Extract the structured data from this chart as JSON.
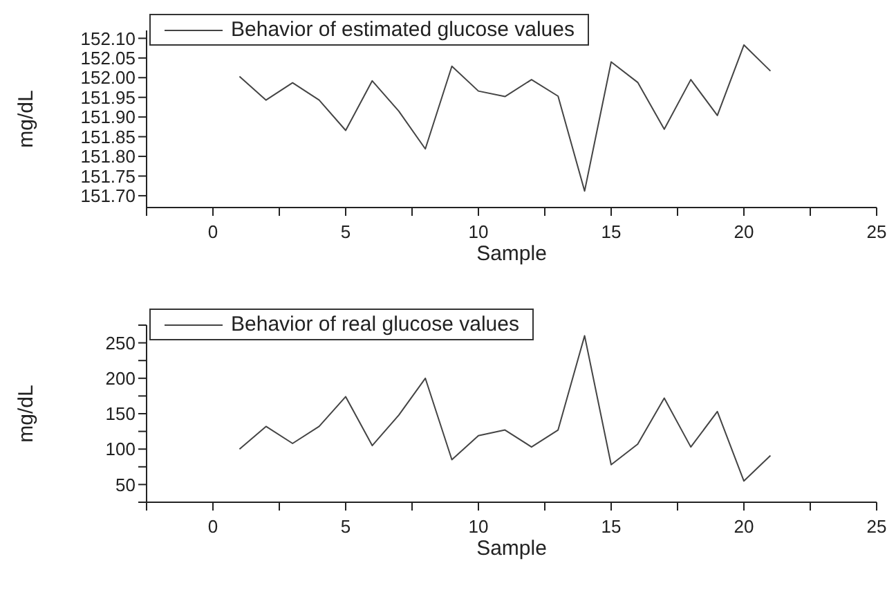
{
  "chart_data": [
    {
      "type": "line",
      "xlabel": "Sample",
      "ylabel": "mg/dL",
      "legend": "top left",
      "marker": "none",
      "line_style": "solid",
      "grid": false,
      "x": [
        1,
        2,
        3,
        4,
        5,
        6,
        7,
        8,
        9,
        10,
        11,
        12,
        13,
        14,
        15,
        16,
        17,
        18,
        19,
        20,
        21
      ],
      "series": [
        {
          "name": "Behavior of estimated glucose values",
          "color": "#444444",
          "values": [
            152.003,
            151.943,
            151.987,
            151.943,
            151.866,
            151.992,
            151.915,
            151.819,
            152.029,
            151.966,
            151.952,
            151.995,
            151.953,
            151.712,
            152.04,
            151.988,
            151.869,
            151.995,
            151.904,
            152.083,
            152.017
          ]
        }
      ],
      "xlim": [
        -2.5,
        25
      ],
      "xticks": [
        {
          "value": -2.5,
          "label": null
        },
        0,
        {
          "value": 2.5,
          "label": null
        },
        5,
        {
          "value": 7.5,
          "label": null
        },
        10,
        {
          "value": 12.5,
          "label": null
        },
        15,
        {
          "value": 17.5,
          "label": null
        },
        20,
        {
          "value": 22.5,
          "label": null
        },
        25
      ],
      "ylim": [
        151.67,
        152.12
      ],
      "yticks": [
        {
          "value": 151.7,
          "label": "151.70"
        },
        {
          "value": 151.75,
          "label": "151.75"
        },
        {
          "value": 151.8,
          "label": "151.80"
        },
        {
          "value": 151.85,
          "label": "151.85"
        },
        {
          "value": 151.9,
          "label": "151.90"
        },
        {
          "value": 151.95,
          "label": "151.95"
        },
        {
          "value": 152.0,
          "label": "152.00"
        },
        {
          "value": 152.05,
          "label": "152.05"
        },
        {
          "value": 152.1,
          "label": "152.10"
        }
      ]
    },
    {
      "type": "line",
      "xlabel": "Sample",
      "ylabel": "mg/dL",
      "legend": "top left",
      "marker": "none",
      "line_style": "solid",
      "grid": false,
      "x": [
        1,
        2,
        3,
        4,
        5,
        6,
        7,
        8,
        9,
        10,
        11,
        12,
        13,
        14,
        15,
        16,
        17,
        18,
        19,
        20,
        21
      ],
      "series": [
        {
          "name": "Behavior of real glucose values",
          "color": "#444444",
          "values": [
            100,
            132,
            108,
            132,
            174,
            105,
            148,
            200,
            85,
            119,
            127,
            103,
            127,
            260,
            78,
            107,
            172,
            103,
            153,
            55,
            91
          ]
        }
      ],
      "xlim": [
        -2.5,
        25
      ],
      "xticks": [
        {
          "value": -2.5,
          "label": null
        },
        0,
        {
          "value": 2.5,
          "label": null
        },
        5,
        {
          "value": 7.5,
          "label": null
        },
        10,
        {
          "value": 12.5,
          "label": null
        },
        15,
        {
          "value": 17.5,
          "label": null
        },
        20,
        {
          "value": 22.5,
          "label": null
        },
        25
      ],
      "ylim": [
        25,
        275
      ],
      "yticks": [
        {
          "value": 25,
          "label": null
        },
        50,
        {
          "value": 75,
          "label": null
        },
        100,
        {
          "value": 125,
          "label": null
        },
        150,
        {
          "value": 175,
          "label": null
        },
        200,
        {
          "value": 225,
          "label": null
        },
        250,
        {
          "value": 275,
          "label": null
        }
      ]
    }
  ]
}
